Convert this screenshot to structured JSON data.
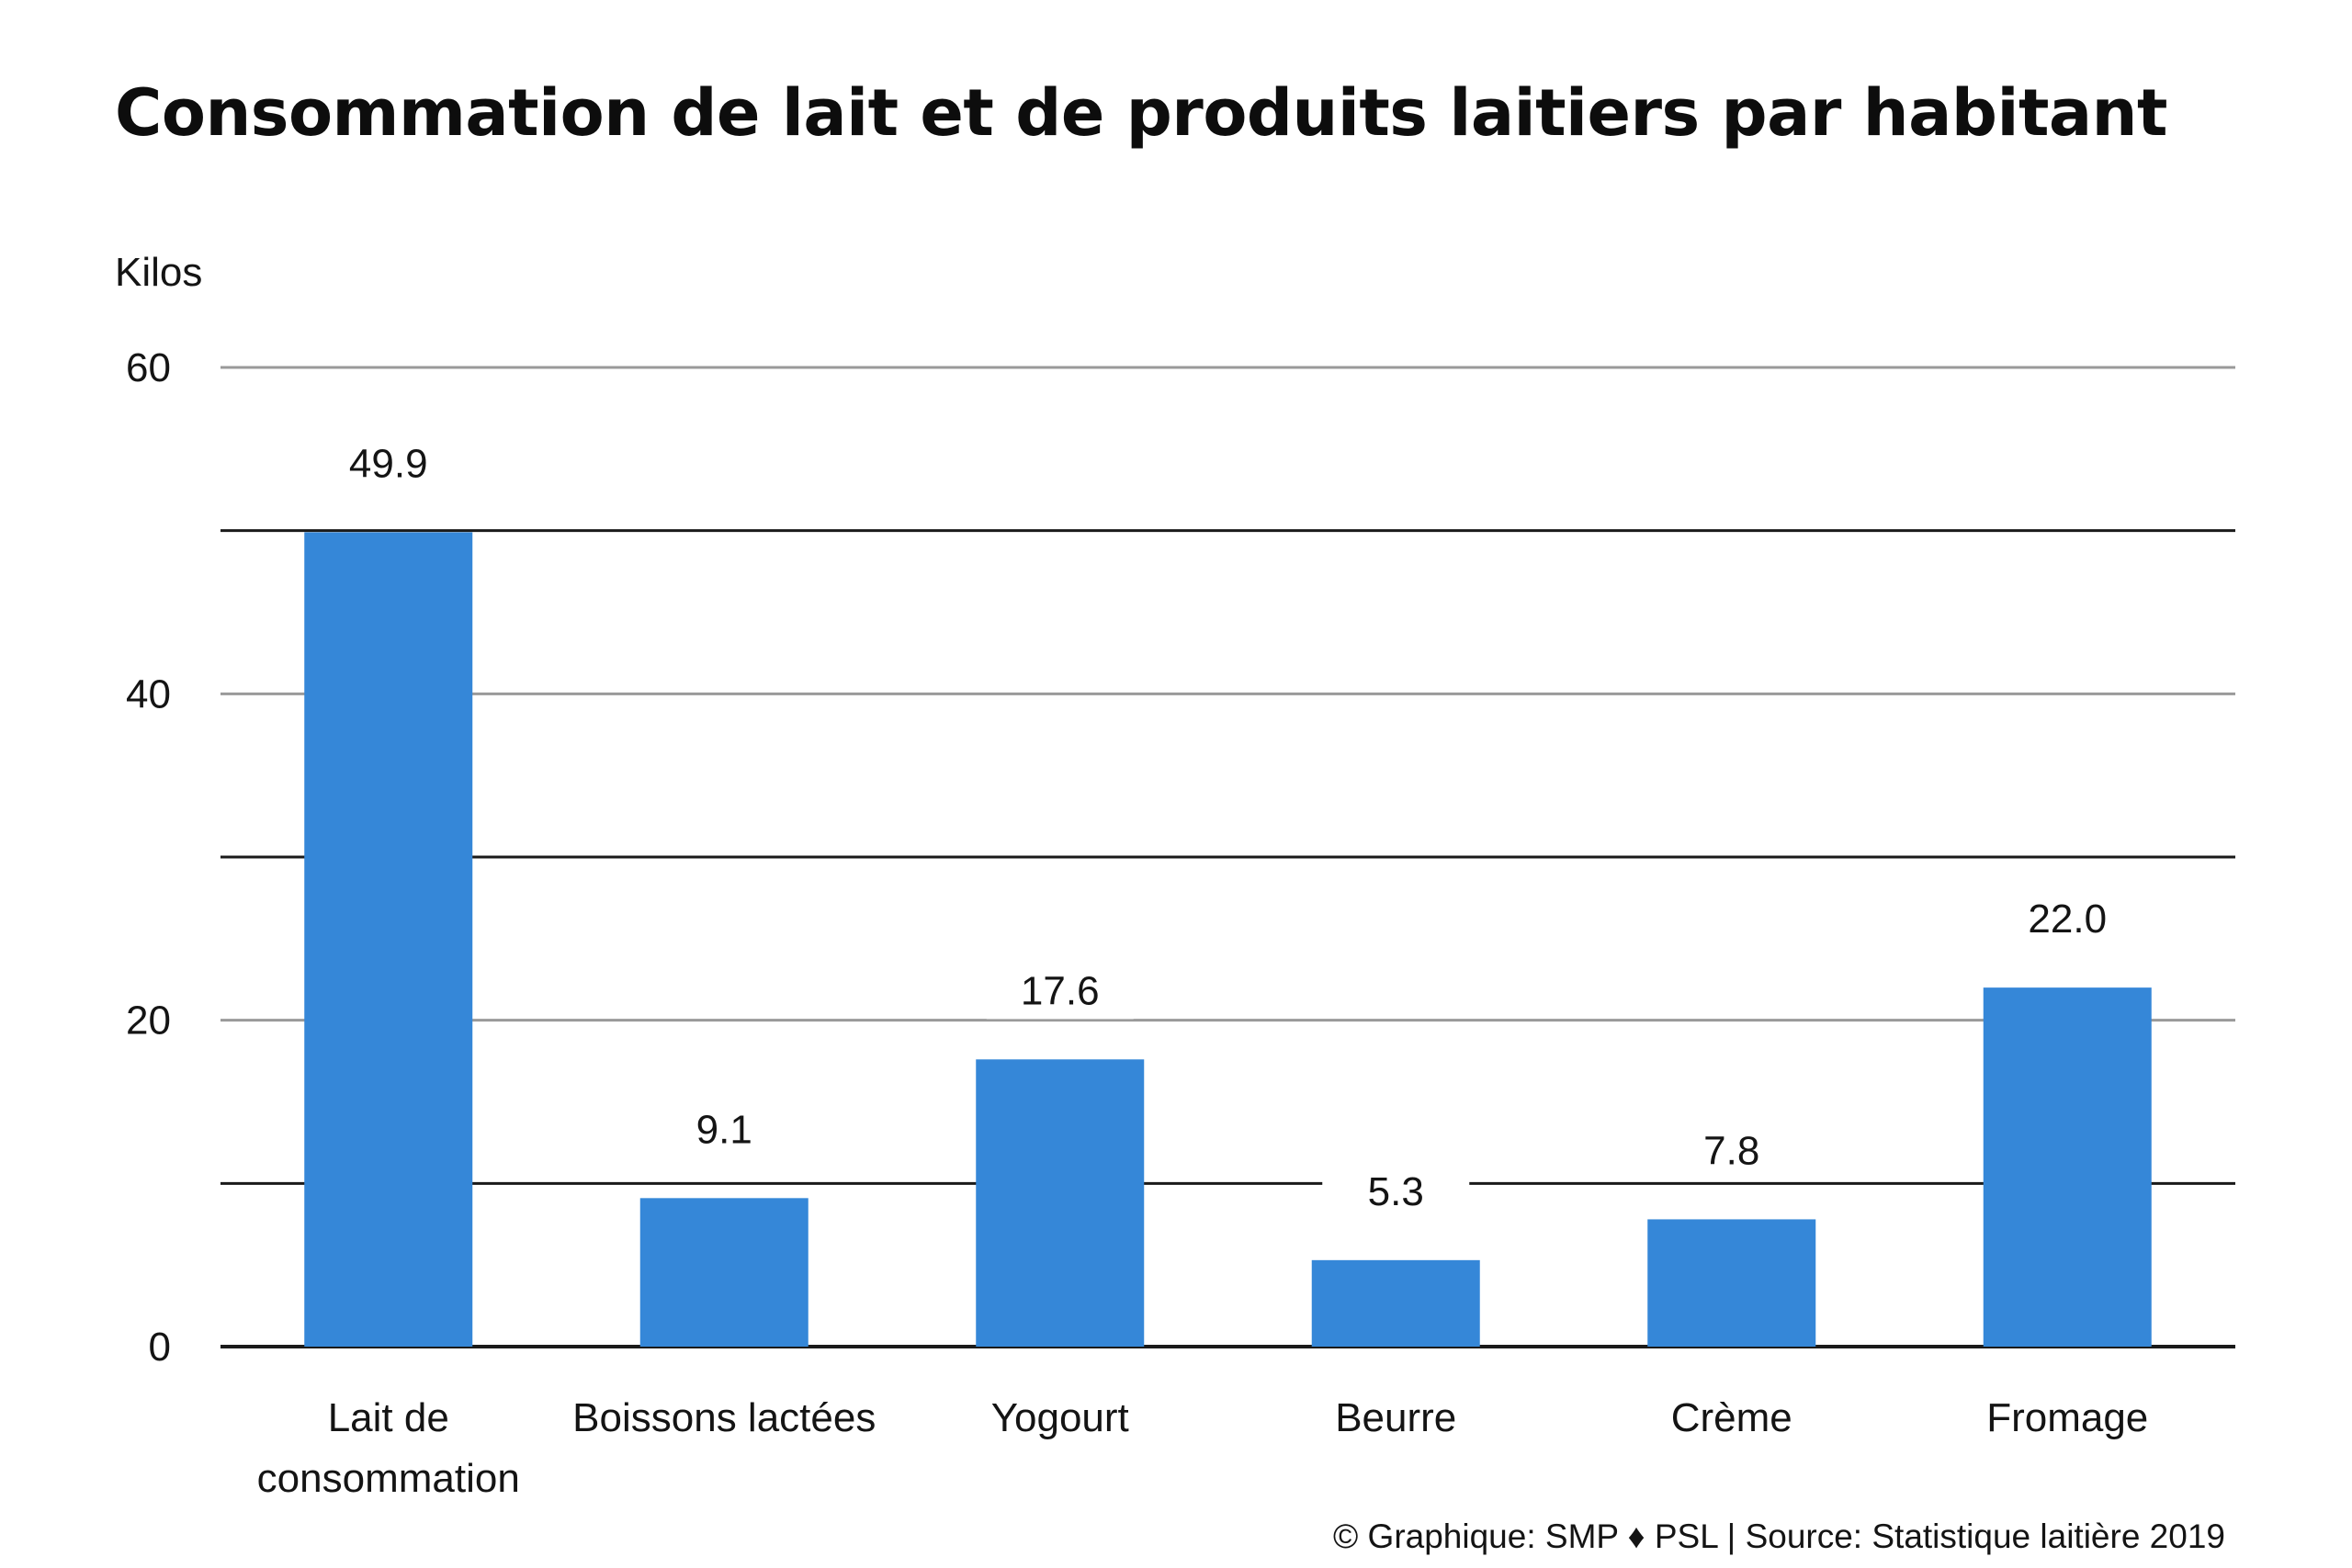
{
  "chart_data": {
    "type": "bar",
    "title": "Consommation de lait et de produits laitiers par habitant",
    "ylabel": "Kilos",
    "xlabel": "",
    "categories": [
      [
        "Lait de",
        "consommation"
      ],
      [
        "Boissons lactées"
      ],
      [
        "Yogourt"
      ],
      [
        "Beurre"
      ],
      [
        "Crème"
      ],
      [
        "Fromage"
      ]
    ],
    "values": [
      49.9,
      9.1,
      17.6,
      5.3,
      7.8,
      22.0
    ],
    "value_labels": [
      "49.9",
      "9.1",
      "17.6",
      "5.3",
      "7.8",
      "22.0"
    ],
    "ylim": [
      0,
      60
    ],
    "yticks": [
      0,
      20,
      40,
      60
    ],
    "ytick_labels": [
      "0",
      "20",
      "40",
      "60"
    ],
    "minor_gridlines": [
      10,
      30,
      50
    ],
    "grid": true,
    "legend": "none",
    "colors": {
      "bar": "#3587d8",
      "major_grid": "#9a9a9a",
      "minor_grid": "#1a1a1a",
      "axis": "#1a1a1a"
    },
    "source": "© Graphique: SMP ♦ PSL | Source: Statistique laitière 2019"
  }
}
